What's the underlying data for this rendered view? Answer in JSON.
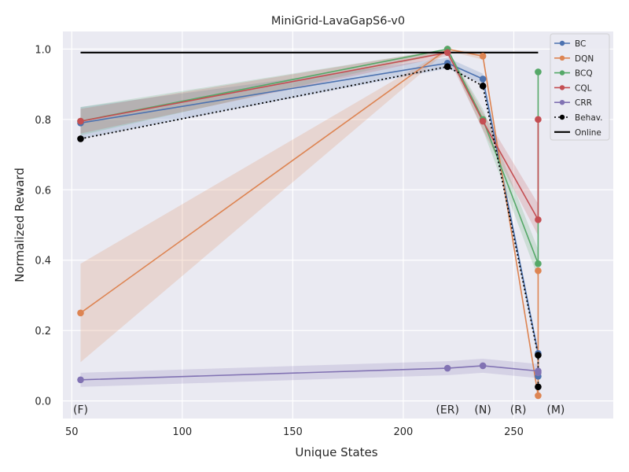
{
  "chart_data": {
    "type": "line",
    "title": "MiniGrid-LavaGapS6-v0",
    "xlabel": "Unique States",
    "ylabel": "Normalized Reward",
    "xlim": [
      46,
      295
    ],
    "ylim": [
      -0.05,
      1.05
    ],
    "xticks": [
      50,
      100,
      150,
      200,
      250
    ],
    "yticks": [
      0.0,
      0.2,
      0.4,
      0.6,
      0.8,
      1.0
    ],
    "ytick_labels": [
      "0.0",
      "0.2",
      "0.4",
      "0.6",
      "0.8",
      "1.0"
    ],
    "grid": true,
    "legend_position": "top-right",
    "x": [
      54,
      220,
      236,
      261,
      261
    ],
    "annotations": [
      {
        "text": "(F)",
        "x": 54
      },
      {
        "text": "(ER)",
        "x": 220
      },
      {
        "text": "(N)",
        "x": 236
      },
      {
        "text": "(R)",
        "x": 252
      },
      {
        "text": "(M)",
        "x": 269
      }
    ],
    "series": [
      {
        "name": "BC",
        "color": "#4c72b0",
        "style": "solid",
        "marker": "circle",
        "values": [
          0.79,
          0.96,
          0.915,
          0.135,
          0.07
        ],
        "lower": [
          0.745,
          0.945,
          0.9,
          0.125,
          0.06
        ],
        "upper": [
          0.835,
          0.975,
          0.93,
          0.145,
          0.08
        ]
      },
      {
        "name": "DQN",
        "color": "#dd8452",
        "style": "solid",
        "marker": "circle",
        "values": [
          0.25,
          1.0,
          0.98,
          0.015,
          0.37
        ],
        "lower": [
          0.11,
          0.995,
          0.97,
          0.005,
          0.3
        ],
        "upper": [
          0.39,
          1.0,
          0.99,
          0.025,
          0.44
        ]
      },
      {
        "name": "BCQ",
        "color": "#55a868",
        "style": "solid",
        "marker": "circle",
        "values": [
          0.795,
          1.0,
          0.8,
          0.39,
          0.935
        ],
        "lower": [
          0.755,
          0.99,
          0.77,
          0.35,
          0.92
        ],
        "upper": [
          0.835,
          1.0,
          0.83,
          0.43,
          0.95
        ]
      },
      {
        "name": "CQL",
        "color": "#c44e52",
        "style": "solid",
        "marker": "circle",
        "values": [
          0.795,
          0.99,
          0.795,
          0.515,
          0.8
        ],
        "lower": [
          0.76,
          0.98,
          0.77,
          0.47,
          0.78
        ],
        "upper": [
          0.83,
          1.0,
          0.82,
          0.56,
          0.82
        ]
      },
      {
        "name": "CRR",
        "color": "#8172b3",
        "style": "solid",
        "marker": "circle",
        "values": [
          0.06,
          0.093,
          0.1,
          0.085,
          0.08
        ],
        "lower": [
          0.04,
          0.073,
          0.08,
          0.065,
          0.06
        ],
        "upper": [
          0.08,
          0.113,
          0.12,
          0.105,
          0.1
        ]
      },
      {
        "name": "Behav.",
        "color": "#000000",
        "style": "dotted",
        "marker": "circle",
        "values": [
          0.745,
          0.95,
          0.895,
          0.13,
          0.04
        ]
      },
      {
        "name": "Online",
        "color": "#000000",
        "style": "solid",
        "marker": "none",
        "x": [
          54,
          261
        ],
        "values": [
          0.99,
          0.99
        ]
      }
    ]
  }
}
